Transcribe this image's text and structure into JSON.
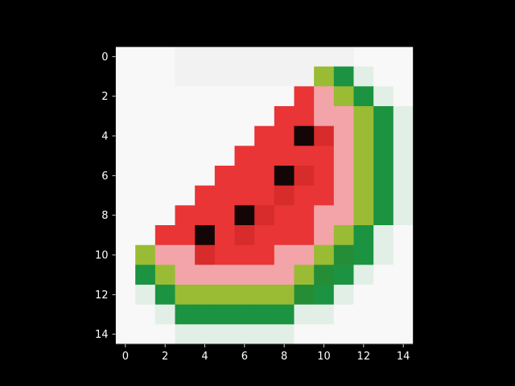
{
  "chart_data": {
    "type": "heatmap",
    "title": "",
    "xlabel": "",
    "ylabel": "",
    "x_ticks": [
      "0",
      "2",
      "4",
      "6",
      "8",
      "10",
      "12",
      "14"
    ],
    "y_ticks": [
      "0",
      "2",
      "4",
      "6",
      "8",
      "10",
      "12",
      "14"
    ],
    "xlim": [
      -0.5,
      14.5
    ],
    "ylim": [
      14.5,
      -0.5
    ],
    "grid": false,
    "legend": "none",
    "palette": {
      "W": "#f8f8f8",
      "L": "#f2f2f2",
      "M": "#e2efe6",
      "G": "#1b9341",
      "g": "#258d36",
      "Y": "#99bc34",
      "P": "#f2a4a9",
      "R": "#e93535",
      "r": "#d82b2b",
      "K": "#140606"
    },
    "pixels": [
      "WWWLLLLLLLLLWWW",
      "WWWLLLLLLLYGMWW",
      "WWWWWWWWWRPYGMW",
      "WWWWWWWWRRPPYGM",
      "WWWWWWWRRKrPYGM",
      "WWWWWWRRRRRPYGM",
      "WWWWWRRRKrRPYGM",
      "WWWWRRRRrRRPYGM",
      "WWWRRRKrRRPPYGM",
      "WWRRKRrRRRPYGMW",
      "WYPPrRRRPPYgGMW",
      "WGYPPPPPPYgGMWW",
      "WMGYYYYYYgGMWWW",
      "WWMGGGGGGMMWWWW",
      "WWWMMMMMMWWWWWW"
    ]
  }
}
